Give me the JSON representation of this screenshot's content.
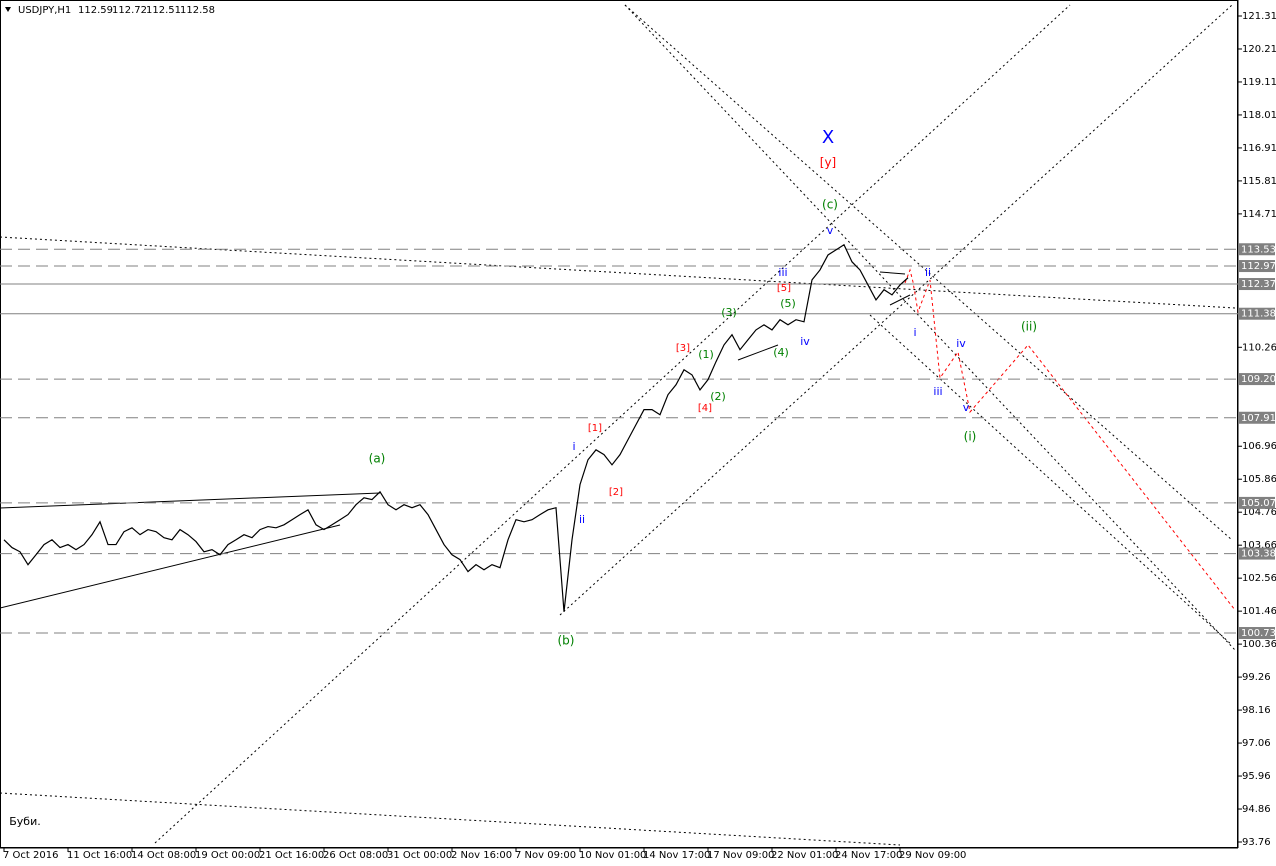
{
  "chart_data": {
    "type": "line",
    "title": "USDJPY,H1",
    "ohlc": [
      112.59,
      112.72,
      112.51,
      112.58
    ],
    "color": "#000000",
    "categories": [
      "7 Oct 2016",
      null,
      null,
      null,
      null,
      null,
      null,
      null,
      "11 Oct 16:00",
      null,
      null,
      null,
      null,
      null,
      null,
      null,
      "14 Oct 08:00",
      null,
      null,
      null,
      null,
      null,
      null,
      null,
      "19 Oct 00:00",
      null,
      null,
      null,
      null,
      null,
      null,
      null,
      "21 Oct 16:00",
      null,
      null,
      null,
      null,
      null,
      null,
      null,
      "26 Oct 08:00",
      null,
      null,
      null,
      null,
      null,
      null,
      null,
      "31 Oct 00:00",
      null,
      null,
      null,
      null,
      null,
      null,
      null,
      "2 Nov 16:00",
      null,
      null,
      null,
      null,
      null,
      null,
      null,
      "7 Nov 09:00",
      null,
      null,
      null,
      null,
      null,
      null,
      null,
      "10 Nov 01:00",
      null,
      null,
      null,
      null,
      null,
      null,
      null,
      "14 Nov 17:00",
      null,
      null,
      null,
      null,
      null,
      null,
      null,
      "17 Nov 09:00",
      null,
      null,
      null,
      null,
      null,
      null,
      null,
      "22 Nov 01:00",
      null,
      null,
      null,
      null,
      null,
      null,
      null,
      "24 Nov 17:00",
      null,
      null,
      null,
      null,
      null,
      null,
      null,
      "29 Nov 09:00",
      null
    ],
    "values": [
      103.84,
      103.58,
      103.44,
      103.01,
      103.34,
      103.68,
      103.84,
      103.58,
      103.68,
      103.51,
      103.68,
      104.01,
      104.44,
      103.68,
      103.68,
      104.11,
      104.24,
      104.01,
      104.18,
      104.11,
      103.91,
      103.84,
      104.18,
      104.01,
      103.78,
      103.44,
      103.51,
      103.34,
      103.68,
      103.84,
      104.01,
      103.91,
      104.18,
      104.28,
      104.24,
      104.34,
      104.51,
      104.68,
      104.84,
      104.34,
      104.18,
      104.34,
      104.51,
      104.68,
      105.01,
      105.24,
      105.18,
      105.44,
      105.01,
      104.84,
      105.01,
      104.91,
      105.01,
      104.68,
      104.18,
      103.68,
      103.34,
      103.18,
      102.78,
      103.01,
      102.84,
      103.01,
      102.91,
      103.84,
      104.51,
      104.44,
      104.51,
      104.68,
      104.84,
      104.91,
      101.44,
      103.84,
      105.68,
      106.51,
      106.84,
      106.68,
      106.34,
      106.68,
      107.18,
      107.68,
      108.18,
      108.18,
      108.01,
      108.68,
      109.01,
      109.51,
      109.34,
      108.84,
      109.18,
      109.78,
      110.34,
      110.68,
      110.18,
      110.51,
      110.84,
      111.01,
      110.84,
      111.18,
      111.01,
      111.18,
      111.11,
      112.51,
      112.84,
      113.34,
      113.51,
      113.68,
      113.11,
      112.84,
      112.34,
      111.84,
      112.18,
      112.01,
      112.34,
      112.58
    ],
    "ylim": [
      93.76,
      121.31
    ],
    "yticks": [
      121.31,
      120.21,
      119.11,
      118.01,
      116.91,
      115.81,
      114.71,
      110.26,
      106.96,
      105.86,
      104.76,
      103.66,
      102.56,
      101.46,
      100.36,
      99.26,
      98.16,
      97.06,
      95.96,
      94.86,
      93.76
    ],
    "dashed_levels": [
      113.53,
      112.97,
      {
        "value": 109.2,
        "label": "109.20"
      },
      107.91,
      105.07,
      103.38,
      100.73
    ],
    "solid_levels": [
      112.37,
      111.38
    ],
    "annotations": [
      {
        "text": "X",
        "color": "#0000ff"
      },
      {
        "text": "[y]",
        "color": "#ff0000"
      },
      {
        "text": "(c)",
        "color": "#008000"
      },
      {
        "text": "v",
        "color": "#0000ff"
      },
      {
        "text": "iii",
        "color": "#0000ff"
      },
      {
        "text": "[5]",
        "color": "#ff0000"
      },
      {
        "text": "(5)",
        "color": "#008000"
      },
      {
        "text": "iv",
        "color": "#0000ff"
      },
      {
        "text": "(4)",
        "color": "#008000"
      },
      {
        "text": "(3)",
        "color": "#008000"
      },
      {
        "text": "[3]",
        "color": "#ff0000"
      },
      {
        "text": "(1)",
        "color": "#008000"
      },
      {
        "text": "(2)",
        "color": "#008000"
      },
      {
        "text": "[4]",
        "color": "#ff0000"
      },
      {
        "text": "[1]",
        "color": "#ff0000"
      },
      {
        "text": "i",
        "color": "#0000ff"
      },
      {
        "text": "[2]",
        "color": "#ff0000"
      },
      {
        "text": "ii",
        "color": "#0000ff"
      },
      {
        "text": "(a)",
        "color": "#008000"
      },
      {
        "text": "(b)",
        "color": "#008000"
      },
      {
        "text": "ii",
        "color": "#0000ff"
      },
      {
        "text": "i",
        "color": "#0000ff"
      },
      {
        "text": "iv",
        "color": "#0000ff"
      },
      {
        "text": "iii",
        "color": "#0000ff"
      },
      {
        "text": "v",
        "color": "#0000ff"
      },
      {
        "text": "(i)",
        "color": "#008000"
      },
      {
        "text": "(ii)",
        "color": "#008000"
      },
      {
        "text": "Буби.",
        "color": "#000000"
      }
    ]
  }
}
